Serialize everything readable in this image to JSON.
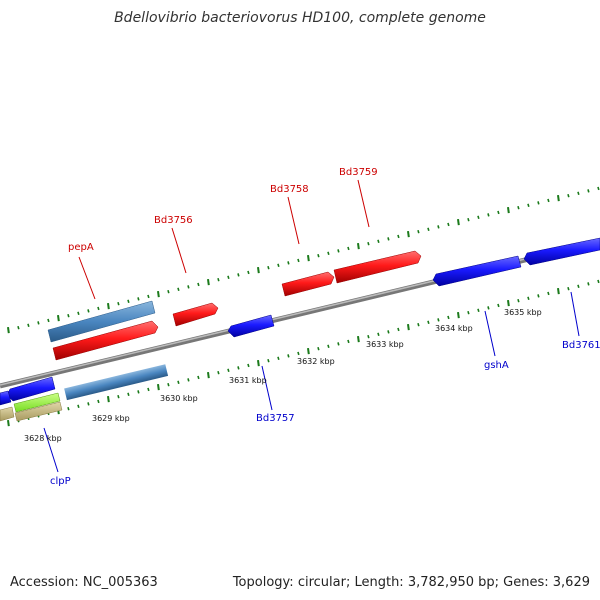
{
  "title": "Bdellovibrio bacteriovorus HD100, complete genome",
  "footer": {
    "accession_label": "Accession:",
    "accession": "NC_005363",
    "topology_label": "Topology:",
    "topology": "circular",
    "length_label": "Length:",
    "length": "3,782,950 bp",
    "genes_label": "Genes:",
    "genes": "3,629"
  },
  "colors": {
    "forward_gene": "#ff1a1a",
    "reverse_gene": "#1a1aff",
    "rna": "#4a86c0",
    "forward_label": "#cc0000",
    "reverse_label": "#0000cc",
    "backbone": "#888888",
    "ticks": "#1a7a1a",
    "other_gene": "#99ff33",
    "other_gene2": "#c8bb80"
  },
  "scale_labels": [
    "3628 kbp",
    "3629 kbp",
    "3630 kbp",
    "3631 kbp",
    "3632 kbp",
    "3633 kbp",
    "3634 kbp",
    "3635 kbp"
  ],
  "forward_labels": [
    "pepA",
    "Bd3756",
    "Bd3758",
    "Bd3759"
  ],
  "reverse_labels": [
    "clpP",
    "Bd3757",
    "gshA",
    "Bd3761"
  ]
}
